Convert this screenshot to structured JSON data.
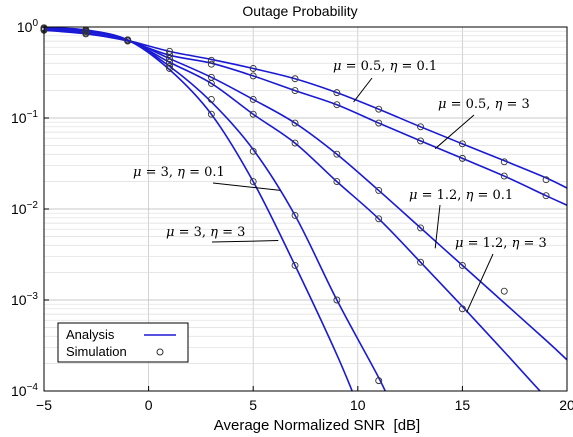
{
  "chart_data": {
    "type": "line",
    "title": "Outage Probability",
    "xlabel": "Average Normalized SNR  [dB]",
    "ylabel": "",
    "xlim": [
      -5,
      20
    ],
    "ylim": [
      0.0001,
      1
    ],
    "yscale": "log",
    "grid": true,
    "line_color": "#1a1ad6",
    "x_ticks": [
      {
        "value": -5,
        "label": "−5"
      },
      {
        "value": 0,
        "label": "0"
      },
      {
        "value": 5,
        "label": "5"
      },
      {
        "value": 10,
        "label": "10"
      },
      {
        "value": 15,
        "label": "15"
      },
      {
        "value": 20,
        "label": "20"
      }
    ],
    "y_ticks": [
      {
        "value": 1,
        "base": "10",
        "exp": "0"
      },
      {
        "value": 0.1,
        "base": "10",
        "exp": "−1"
      },
      {
        "value": 0.01,
        "base": "10",
        "exp": "−2"
      },
      {
        "value": 0.001,
        "base": "10",
        "exp": "−3"
      },
      {
        "value": 0.0001,
        "base": "10",
        "exp": "−4"
      }
    ],
    "legend": {
      "position": "bottom-left",
      "entries": [
        {
          "label": "Analysis",
          "marker": "line"
        },
        {
          "label": "Simulation",
          "marker": "circle"
        }
      ]
    },
    "series": [
      {
        "mu": "0.5",
        "eta": "0.1",
        "x": [
          -5,
          -3,
          -1,
          1,
          3,
          5,
          7,
          9,
          11,
          13,
          15,
          17,
          19,
          20
        ],
        "y": [
          0.93,
          0.86,
          0.71,
          0.54,
          0.44,
          0.35,
          0.27,
          0.19,
          0.125,
          0.08,
          0.052,
          0.034,
          0.022,
          0.017
        ],
        "sim_x": [
          -5,
          -3,
          -1,
          1,
          3,
          5,
          7,
          9,
          11,
          13,
          15,
          17,
          19
        ],
        "sim_y": [
          0.93,
          0.86,
          0.71,
          0.54,
          0.43,
          0.35,
          0.27,
          0.19,
          0.125,
          0.08,
          0.052,
          0.033,
          0.021
        ]
      },
      {
        "mu": "0.5",
        "eta": "3",
        "x": [
          -5,
          -3,
          -1,
          1,
          3,
          5,
          7,
          9,
          11,
          13,
          15,
          17,
          19,
          20
        ],
        "y": [
          0.92,
          0.84,
          0.7,
          0.49,
          0.4,
          0.29,
          0.2,
          0.14,
          0.088,
          0.056,
          0.036,
          0.023,
          0.014,
          0.011
        ],
        "sim_x": [
          -5,
          -3,
          -1,
          1,
          3,
          5,
          7,
          9,
          11,
          13,
          15,
          17,
          19
        ],
        "sim_y": [
          0.92,
          0.84,
          0.7,
          0.5,
          0.39,
          0.29,
          0.2,
          0.14,
          0.088,
          0.056,
          0.036,
          0.023,
          0.014
        ]
      },
      {
        "mu": "1.2",
        "eta": "0.1",
        "x": [
          -5,
          -3,
          -1,
          1,
          3,
          5,
          7,
          9,
          11,
          13,
          15,
          17,
          19,
          20
        ],
        "y": [
          0.96,
          0.9,
          0.72,
          0.45,
          0.28,
          0.16,
          0.088,
          0.04,
          0.016,
          0.0062,
          0.0024,
          0.00093,
          0.00036,
          0.00022
        ],
        "sim_x": [
          -5,
          -3,
          -1,
          1,
          3,
          5,
          7,
          9,
          11,
          13,
          15,
          17
        ],
        "sim_y": [
          0.96,
          0.9,
          0.72,
          0.45,
          0.28,
          0.16,
          0.088,
          0.04,
          0.016,
          0.0062,
          0.0024,
          0.00125
        ]
      },
      {
        "mu": "1.2",
        "eta": "3",
        "x": [
          -5,
          -3,
          -1,
          1,
          3,
          5,
          7,
          9,
          11,
          13,
          15,
          17,
          19,
          19.5
        ],
        "y": [
          0.95,
          0.89,
          0.72,
          0.41,
          0.24,
          0.11,
          0.053,
          0.02,
          0.0078,
          0.0026,
          0.00085,
          0.00027,
          8.5e-05,
          7e-05
        ],
        "sim_x": [
          -5,
          -3,
          -1,
          1,
          3,
          5,
          7,
          9,
          11,
          13,
          15
        ],
        "sim_y": [
          0.95,
          0.89,
          0.72,
          0.41,
          0.24,
          0.11,
          0.053,
          0.02,
          0.0078,
          0.0026,
          0.0008
        ]
      },
      {
        "mu": "3",
        "eta": "0.1",
        "x": [
          -5,
          -3,
          -1,
          1,
          3,
          5,
          7,
          9,
          11,
          11.6
        ],
        "y": [
          0.98,
          0.93,
          0.72,
          0.37,
          0.15,
          0.045,
          0.0085,
          0.001,
          0.00014,
          7e-05
        ],
        "sim_x": [
          -5,
          -3,
          -1,
          1,
          3,
          5,
          7,
          9,
          11
        ],
        "sim_y": [
          0.98,
          0.93,
          0.72,
          0.37,
          0.16,
          0.043,
          0.0085,
          0.001,
          0.00013
        ]
      },
      {
        "mu": "3",
        "eta": "3",
        "x": [
          -5,
          -3,
          -1,
          1,
          3,
          5,
          7,
          9,
          10
        ],
        "y": [
          0.98,
          0.92,
          0.72,
          0.34,
          0.11,
          0.02,
          0.0024,
          0.00025,
          7e-05
        ],
        "sim_x": [
          -5,
          -3,
          -1,
          1,
          3,
          5,
          7
        ],
        "sim_y": [
          0.98,
          0.92,
          0.72,
          0.35,
          0.11,
          0.02,
          0.0024
        ]
      }
    ],
    "annotations": [
      {
        "mu": "0.5",
        "eta": "0.1",
        "point_x": 9.8,
        "point_y": 0.15
      },
      {
        "mu": "0.5",
        "eta": "3",
        "point_x": 13.7,
        "point_y": 0.046
      },
      {
        "mu": "1.2",
        "eta": "0.1",
        "point_x": 13.7,
        "point_y": 0.0037
      },
      {
        "mu": "1.2",
        "eta": "3",
        "point_x": 15.2,
        "point_y": 0.00073
      },
      {
        "mu": "3",
        "eta": "0.1",
        "point_x": 6.3,
        "point_y": 0.016
      },
      {
        "mu": "3",
        "eta": "3",
        "point_x": 6.2,
        "point_y": 0.0045
      }
    ]
  }
}
